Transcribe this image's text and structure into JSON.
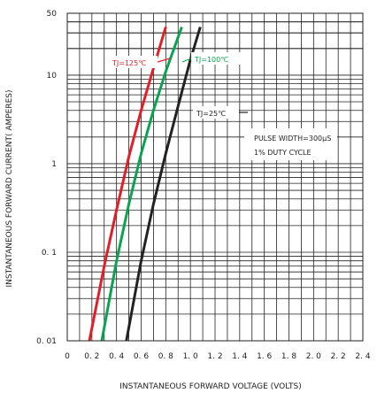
{
  "chart_data": {
    "type": "line",
    "title": "",
    "xlabel": "INSTANTANEOUS FORWARD VOLTAGE (VOLTS)",
    "ylabel": "INSTANTANEOUS FORWARD CURRENT( AMPERES)",
    "xlim": [
      0,
      2.4
    ],
    "ylim": [
      0.01,
      50
    ],
    "yscale": "log",
    "grid": true,
    "x_ticks": [
      0,
      0.2,
      0.4,
      0.6,
      0.8,
      1.0,
      1.2,
      1.4,
      1.6,
      1.8,
      2.0,
      2.2,
      2.4
    ],
    "x_tick_labels": [
      "0",
      "0. 2",
      "0. 4",
      "0. 6",
      "0. 8",
      "1. 0",
      "1. 2",
      "1. 4",
      "1. 6",
      "1. 8",
      "2. 0",
      "2. 2",
      "2. 4"
    ],
    "y_ticks": [
      0.01,
      0.1,
      1,
      10,
      50
    ],
    "y_tick_labels": [
      "0. 01",
      "0. 1",
      "1",
      "10",
      "50"
    ],
    "series": [
      {
        "name": "TJ=125℃",
        "color": "#e41e26",
        "x": [
          0.18,
          0.3,
          0.4,
          0.5,
          0.6,
          0.7,
          0.8
        ],
        "y": [
          0.01,
          0.07,
          0.3,
          1.2,
          4,
          12,
          35
        ]
      },
      {
        "name": "TJ=100℃",
        "color": "#0aa34f",
        "x": [
          0.28,
          0.4,
          0.5,
          0.6,
          0.7,
          0.8,
          0.93
        ],
        "y": [
          0.01,
          0.08,
          0.35,
          1.3,
          4,
          11,
          35
        ]
      },
      {
        "name": "TJ=25℃",
        "color": "#222222",
        "x": [
          0.48,
          0.6,
          0.7,
          0.8,
          0.9,
          1.0,
          1.08
        ],
        "y": [
          0.01,
          0.08,
          0.35,
          1.3,
          4.5,
          15,
          35
        ]
      }
    ],
    "annotations": [
      "PULSE WIDTH=300μS",
      "1% DUTY CYCLE"
    ]
  }
}
